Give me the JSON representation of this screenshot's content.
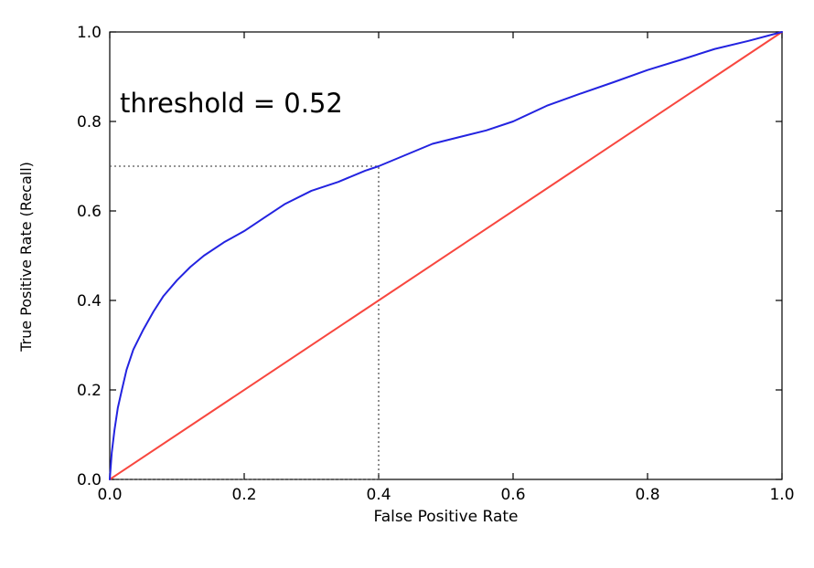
{
  "chart_data": {
    "type": "line",
    "title": "",
    "xlabel": "False Positive Rate",
    "ylabel": "True Positive Rate (Recall)",
    "xlim": [
      0,
      1
    ],
    "ylim": [
      0,
      1
    ],
    "grid": false,
    "legend": "none",
    "x_ticks": [
      "0.0",
      "0.2",
      "0.4",
      "0.6",
      "0.8",
      "1.0"
    ],
    "y_ticks": [
      "0.0",
      "0.2",
      "0.4",
      "0.6",
      "0.8",
      "1.0"
    ],
    "annotation": {
      "text": "threshold = 0.52",
      "x": 0.02,
      "y": 0.83
    },
    "threshold_point": {
      "x": 0.4,
      "y": 0.7
    },
    "guide_lines": [
      {
        "name": "threshold-hline",
        "x": [
          0,
          0.4
        ],
        "y": [
          0.7,
          0.7
        ]
      },
      {
        "name": "threshold-vline",
        "x": [
          0.4,
          0.4
        ],
        "y": [
          0,
          0.7
        ]
      },
      {
        "name": "threshold-baseline",
        "x": [
          0,
          0.4
        ],
        "y": [
          0,
          0
        ]
      }
    ],
    "guide_style": {
      "color": "#555555",
      "dash": "2,3",
      "width": 1.3
    },
    "series": [
      {
        "name": "chance-diagonal",
        "color": "#f8473f",
        "width": 2,
        "x": [
          0,
          1
        ],
        "y": [
          0,
          1
        ]
      },
      {
        "name": "roc-curve",
        "color": "#2323e0",
        "width": 2,
        "x": [
          0,
          0.003,
          0.007,
          0.012,
          0.018,
          0.025,
          0.035,
          0.05,
          0.065,
          0.08,
          0.1,
          0.12,
          0.14,
          0.17,
          0.2,
          0.23,
          0.26,
          0.3,
          0.34,
          0.38,
          0.4,
          0.44,
          0.48,
          0.52,
          0.56,
          0.6,
          0.65,
          0.7,
          0.75,
          0.8,
          0.85,
          0.9,
          0.95,
          1.0
        ],
        "y": [
          0,
          0.06,
          0.11,
          0.16,
          0.2,
          0.245,
          0.29,
          0.335,
          0.375,
          0.41,
          0.445,
          0.475,
          0.5,
          0.53,
          0.555,
          0.585,
          0.615,
          0.645,
          0.665,
          0.69,
          0.7,
          0.725,
          0.75,
          0.765,
          0.78,
          0.8,
          0.835,
          0.862,
          0.888,
          0.915,
          0.938,
          0.962,
          0.98,
          1.0
        ]
      }
    ],
    "axis_color": "#000000",
    "background_color": "#ffffff"
  }
}
